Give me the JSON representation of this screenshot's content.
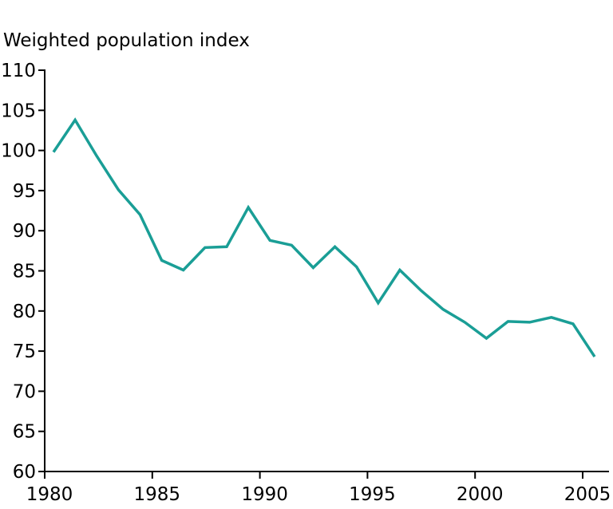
{
  "page": {
    "background": "#ffffff"
  },
  "chart_data": {
    "type": "line",
    "title": "Weighted population index",
    "xlabel": "",
    "ylabel": "",
    "x": [
      1980,
      1981,
      1982,
      1983,
      1984,
      1985,
      1986,
      1987,
      1988,
      1989,
      1990,
      1991,
      1992,
      1993,
      1994,
      1995,
      1996,
      1997,
      1998,
      1999,
      2000,
      2001,
      2002,
      2003,
      2004,
      2005
    ],
    "series": [
      {
        "name": "Weighted population index",
        "color": "#1a9e96",
        "values": [
          99.8,
          103.8,
          99.3,
          95.1,
          92.0,
          86.3,
          85.1,
          87.9,
          88.0,
          92.9,
          88.8,
          88.2,
          85.4,
          88.0,
          85.5,
          81.0,
          85.1,
          82.5,
          80.2,
          78.6,
          76.6,
          78.7,
          78.6,
          79.2,
          78.4,
          74.3
        ]
      }
    ],
    "ylim": [
      60,
      110
    ],
    "ytick_step": 5,
    "yticks": [
      60,
      65,
      70,
      75,
      80,
      85,
      90,
      95,
      100,
      105,
      110
    ],
    "xticks": [
      1980,
      1985,
      1990,
      1995,
      2000,
      2005
    ],
    "grid": false,
    "legend": "none",
    "axis_color": "#000000",
    "tick_label_color": "#000000"
  }
}
